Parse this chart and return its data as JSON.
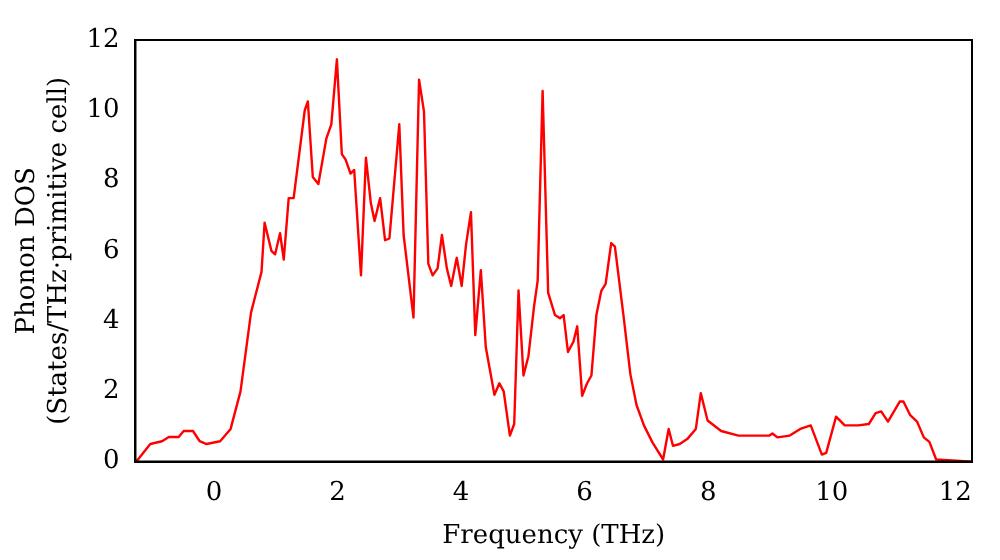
{
  "chart_data": {
    "type": "line",
    "xlabel": "Frequency (THz)",
    "ylabel": "Phonon DOS\n(States/THz·primitive cell)",
    "x": [
      -1.27,
      -1.23,
      -1.03,
      -0.84,
      -0.73,
      -0.57,
      -0.49,
      -0.34,
      -0.23,
      -0.12,
      0.1,
      0.27,
      0.43,
      0.6,
      0.77,
      0.82,
      0.93,
      0.99,
      1.07,
      1.13,
      1.21,
      1.29,
      1.47,
      1.52,
      1.6,
      1.69,
      1.82,
      1.9,
      1.99,
      2.07,
      2.13,
      2.21,
      2.27,
      2.38,
      2.46,
      2.54,
      2.6,
      2.69,
      2.77,
      2.84,
      3.0,
      3.07,
      3.23,
      3.32,
      3.4,
      3.47,
      3.54,
      3.62,
      3.69,
      3.77,
      3.84,
      3.93,
      4.01,
      4.08,
      4.16,
      4.23,
      4.32,
      4.4,
      4.47,
      4.54,
      4.62,
      4.69,
      4.79,
      4.86,
      4.93,
      5.01,
      5.09,
      5.18,
      5.24,
      5.32,
      5.41,
      5.52,
      5.6,
      5.66,
      5.73,
      5.82,
      5.88,
      5.96,
      6.04,
      6.11,
      6.19,
      6.27,
      6.34,
      6.43,
      6.49,
      6.63,
      6.74,
      6.84,
      6.96,
      7.1,
      7.27,
      7.36,
      7.43,
      7.54,
      7.66,
      7.8,
      7.88,
      7.99,
      8.21,
      8.49,
      8.99,
      9.04,
      9.12,
      9.32,
      9.49,
      9.66,
      9.84,
      9.91,
      10.07,
      10.21,
      10.43,
      10.6,
      10.71,
      10.8,
      10.91,
      11.1,
      11.16,
      11.27,
      11.38,
      11.49,
      11.58,
      11.69,
      12.27
    ],
    "series": [
      {
        "color": "#ff0000",
        "values": [
          0,
          0.06,
          0.5,
          0.58,
          0.7,
          0.7,
          0.87,
          0.87,
          0.58,
          0.5,
          0.58,
          0.93,
          2.0,
          4.24,
          5.4,
          6.8,
          6.0,
          5.9,
          6.5,
          5.75,
          7.5,
          7.5,
          10.0,
          10.25,
          8.1,
          7.9,
          9.2,
          9.6,
          11.45,
          8.75,
          8.6,
          8.2,
          8.3,
          5.3,
          8.65,
          7.35,
          6.85,
          7.5,
          6.3,
          6.35,
          9.6,
          6.45,
          4.1,
          10.87,
          9.96,
          5.63,
          5.3,
          5.5,
          6.45,
          5.5,
          5.0,
          5.8,
          5.0,
          6.17,
          7.1,
          3.6,
          5.45,
          3.26,
          2.58,
          1.9,
          2.23,
          2.0,
          0.74,
          1.07,
          4.87,
          2.45,
          3.0,
          4.4,
          5.15,
          10.55,
          4.8,
          4.17,
          4.08,
          4.17,
          3.12,
          3.42,
          3.85,
          1.87,
          2.23,
          2.45,
          4.17,
          4.86,
          5.06,
          6.22,
          6.12,
          4.14,
          2.49,
          1.61,
          1.03,
          0.54,
          0.06,
          0.93,
          0.45,
          0.5,
          0.64,
          0.93,
          1.95,
          1.17,
          0.87,
          0.74,
          0.74,
          0.8,
          0.69,
          0.74,
          0.93,
          1.03,
          0.2,
          0.25,
          1.28,
          1.03,
          1.03,
          1.07,
          1.38,
          1.43,
          1.14,
          1.71,
          1.71,
          1.32,
          1.14,
          0.69,
          0.56,
          0.06,
          0
        ]
      }
    ],
    "xlim": [
      -1.27,
      12.27
    ],
    "xticks": [
      0,
      2,
      4,
      6,
      8,
      10,
      12
    ],
    "ylim": [
      0,
      12
    ],
    "yticks": [
      0,
      2,
      4,
      6,
      8,
      10,
      12
    ],
    "grid": false,
    "legend": false,
    "marker": "none",
    "line_style": "solid"
  }
}
